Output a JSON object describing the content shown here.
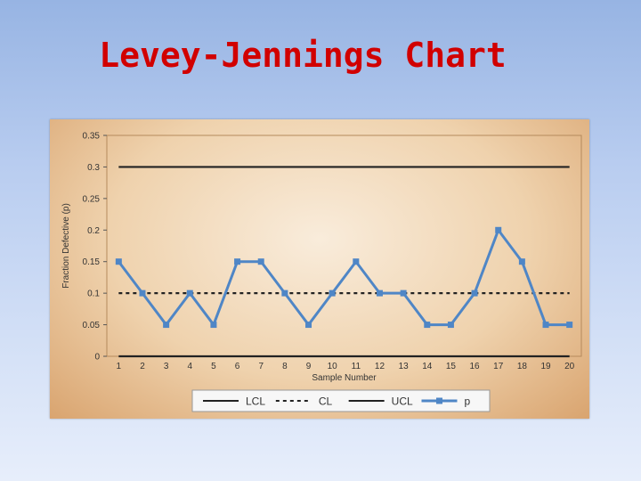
{
  "slide": {
    "title": "Levey-Jennings Chart"
  },
  "chart_data": {
    "type": "line",
    "xlabel": "Sample Number",
    "ylabel": "Fraction Defective (p)",
    "x": [
      1,
      2,
      3,
      4,
      5,
      6,
      7,
      8,
      9,
      10,
      11,
      12,
      13,
      14,
      15,
      16,
      17,
      18,
      19,
      20
    ],
    "ylim": [
      0,
      0.35
    ],
    "yticks": [
      0,
      0.05,
      0.1,
      0.15,
      0.2,
      0.25,
      0.3,
      0.35
    ],
    "ytick_labels": [
      "0",
      "0.05",
      "0.1",
      "0.15",
      "0.2",
      "0.25",
      "0.3",
      "0.35"
    ],
    "legend_position": "bottom",
    "series": [
      {
        "name": "LCL",
        "values": [
          0,
          0,
          0,
          0,
          0,
          0,
          0,
          0,
          0,
          0,
          0,
          0,
          0,
          0,
          0,
          0,
          0,
          0,
          0,
          0
        ],
        "color": "#222222",
        "style": "solid"
      },
      {
        "name": "CL",
        "values": [
          0.1,
          0.1,
          0.1,
          0.1,
          0.1,
          0.1,
          0.1,
          0.1,
          0.1,
          0.1,
          0.1,
          0.1,
          0.1,
          0.1,
          0.1,
          0.1,
          0.1,
          0.1,
          0.1,
          0.1
        ],
        "color": "#222222",
        "style": "dashed"
      },
      {
        "name": "UCL",
        "values": [
          0.3,
          0.3,
          0.3,
          0.3,
          0.3,
          0.3,
          0.3,
          0.3,
          0.3,
          0.3,
          0.3,
          0.3,
          0.3,
          0.3,
          0.3,
          0.3,
          0.3,
          0.3,
          0.3,
          0.3
        ],
        "color": "#222222",
        "style": "solid"
      },
      {
        "name": "p",
        "values": [
          0.15,
          0.1,
          0.05,
          0.1,
          0.05,
          0.15,
          0.15,
          0.1,
          0.05,
          0.1,
          0.15,
          0.1,
          0.1,
          0.05,
          0.05,
          0.1,
          0.2,
          0.15,
          0.05,
          0.05
        ],
        "color": "#4f86c6",
        "style": "solid-marker"
      }
    ]
  }
}
